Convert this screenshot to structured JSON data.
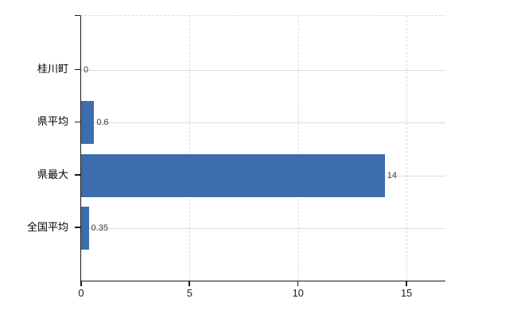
{
  "chart_data": {
    "type": "bar",
    "orientation": "horizontal",
    "title": "",
    "xlabel": "",
    "ylabel": "",
    "categories": [
      "桂川町",
      "県平均",
      "県最大",
      "全国平均"
    ],
    "values": [
      0,
      0.6,
      14,
      0.35
    ],
    "value_labels": [
      "0",
      "0.6",
      "14",
      "0.35"
    ],
    "x_ticks": [
      0,
      5,
      10,
      15
    ],
    "x_tick_labels": [
      "0",
      "5",
      "10",
      "15"
    ],
    "xlim": [
      0,
      16.8
    ],
    "grid": {
      "horizontal": true,
      "vertical": true,
      "top_border_dashed": true
    },
    "legend": "none",
    "colors": {
      "bar": "#3e6dad",
      "h_gridline": "#d6dfd6",
      "v_gridline": "#d9d8de",
      "top_border": "#d9d9d9",
      "axis": "#1a1a1a",
      "category_label": "#000000",
      "tick_label": "#222222",
      "value_label": "#3a3a3a",
      "background": "#ffffff"
    }
  }
}
